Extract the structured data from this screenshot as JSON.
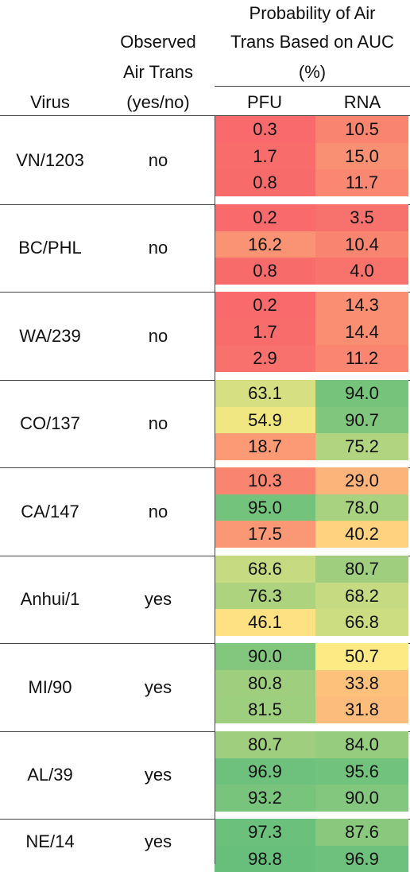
{
  "header": {
    "virus": "Virus",
    "observed_l1": "Observed",
    "observed_l2": "Air Trans",
    "observed_l3": "(yes/no)",
    "prob_l1": "Probability of Air",
    "prob_l2": "Trans Based on AUC",
    "prob_l3": "(%)",
    "pfu": "PFU",
    "rna": "RNA"
  },
  "colors": {
    "red": "#F8696B",
    "yellow": "#FFEB84",
    "green": "#63BE7B",
    "rule": "#444444",
    "text": "#111111"
  },
  "groups": [
    {
      "virus": "VN/1203",
      "observed": "no",
      "pfu": [
        "0.3",
        "1.7",
        "0.8"
      ],
      "rna": [
        "10.5",
        "15.0",
        "11.7"
      ]
    },
    {
      "virus": "BC/PHL",
      "observed": "no",
      "pfu": [
        "0.2",
        "16.2",
        "0.8"
      ],
      "rna": [
        "3.5",
        "10.4",
        "4.0"
      ]
    },
    {
      "virus": "WA/239",
      "observed": "no",
      "pfu": [
        "0.2",
        "1.7",
        "2.9"
      ],
      "rna": [
        "14.3",
        "14.4",
        "11.2"
      ]
    },
    {
      "virus": "CO/137",
      "observed": "no",
      "pfu": [
        "63.1",
        "54.9",
        "18.7"
      ],
      "rna": [
        "94.0",
        "90.7",
        "75.2"
      ]
    },
    {
      "virus": "CA/147",
      "observed": "no",
      "pfu": [
        "10.3",
        "95.0",
        "17.5"
      ],
      "rna": [
        "29.0",
        "78.0",
        "40.2"
      ]
    },
    {
      "virus": "Anhui/1",
      "observed": "yes",
      "pfu": [
        "68.6",
        "76.3",
        "46.1"
      ],
      "rna": [
        "80.7",
        "68.2",
        "66.8"
      ]
    },
    {
      "virus": "MI/90",
      "observed": "yes",
      "pfu": [
        "90.0",
        "80.8",
        "81.5"
      ],
      "rna": [
        "50.7",
        "33.8",
        "31.8"
      ]
    },
    {
      "virus": "AL/39",
      "observed": "yes",
      "pfu": [
        "80.7",
        "96.9",
        "93.2"
      ],
      "rna": [
        "84.0",
        "95.6",
        "90.0"
      ]
    },
    {
      "virus": "NE/14",
      "observed": "yes",
      "pfu": [
        "97.3",
        "98.8"
      ],
      "rna": [
        "87.6",
        "96.9"
      ]
    }
  ]
}
